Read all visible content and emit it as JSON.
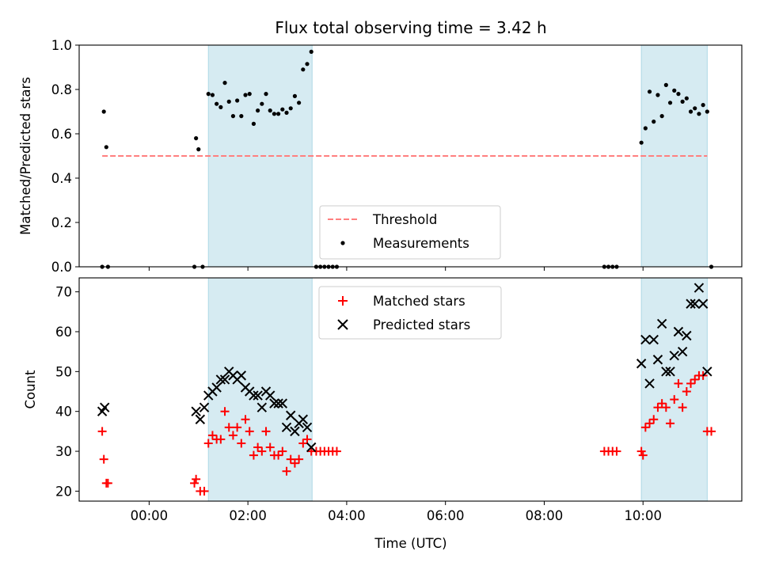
{
  "title": "Flux total observing time = 3.42 h",
  "colors": {
    "shade": "#add8e6",
    "threshold": "#ff7f7f",
    "measurements": "#000000",
    "matched": "#ff0000",
    "predicted": "#000000"
  },
  "shaded_intervals": [
    [
      "01:12",
      "03:18"
    ],
    [
      "09:58",
      "11:18"
    ]
  ],
  "xaxis": {
    "label": "Time (UTC)",
    "ticks": [
      "00:00",
      "02:00",
      "04:00",
      "06:00",
      "08:00",
      "10:00"
    ],
    "range": [
      "-01:25",
      "12:00"
    ]
  },
  "chart_data": [
    {
      "type": "scatter",
      "ylabel": "Matched/Predicted stars",
      "ylim": [
        0,
        1.0
      ],
      "yticks": [
        "0.0",
        "0.2",
        "0.4",
        "0.6",
        "0.8",
        "1.0"
      ],
      "legend": {
        "placement": "lower-center"
      },
      "threshold": {
        "name": "Threshold",
        "value": 0.5,
        "x_range": [
          "-00:57",
          "11:18"
        ]
      },
      "measurements": {
        "name": "Measurements",
        "points": [
          [
            "-00:57",
            0.0
          ],
          [
            "-00:55",
            0.7
          ],
          [
            "-00:52",
            0.54
          ],
          [
            "-00:50",
            0.0
          ],
          [
            "00:55",
            0.0
          ],
          [
            "00:57",
            0.58
          ],
          [
            "01:00",
            0.53
          ],
          [
            "01:05",
            0.0
          ],
          [
            "01:12",
            0.78
          ],
          [
            "01:17",
            0.775
          ],
          [
            "01:22",
            0.735
          ],
          [
            "01:27",
            0.72
          ],
          [
            "01:32",
            0.83
          ],
          [
            "01:37",
            0.745
          ],
          [
            "01:42",
            0.68
          ],
          [
            "01:47",
            0.75
          ],
          [
            "01:52",
            0.68
          ],
          [
            "01:57",
            0.775
          ],
          [
            "02:02",
            0.78
          ],
          [
            "02:07",
            0.645
          ],
          [
            "02:12",
            0.705
          ],
          [
            "02:17",
            0.735
          ],
          [
            "02:22",
            0.78
          ],
          [
            "02:27",
            0.705
          ],
          [
            "02:32",
            0.69
          ],
          [
            "02:37",
            0.69
          ],
          [
            "02:42",
            0.71
          ],
          [
            "02:47",
            0.695
          ],
          [
            "02:52",
            0.715
          ],
          [
            "02:57",
            0.77
          ],
          [
            "03:02",
            0.74
          ],
          [
            "03:07",
            0.89
          ],
          [
            "03:12",
            0.915
          ],
          [
            "03:17",
            0.97
          ],
          [
            "03:23",
            0.0
          ],
          [
            "03:28",
            0.0
          ],
          [
            "03:33",
            0.0
          ],
          [
            "03:38",
            0.0
          ],
          [
            "03:43",
            0.0
          ],
          [
            "03:48",
            0.0
          ],
          [
            "09:13",
            0.0
          ],
          [
            "09:18",
            0.0
          ],
          [
            "09:23",
            0.0
          ],
          [
            "09:28",
            0.0
          ],
          [
            "09:58",
            0.56
          ],
          [
            "10:03",
            0.625
          ],
          [
            "10:08",
            0.79
          ],
          [
            "10:13",
            0.655
          ],
          [
            "10:18",
            0.775
          ],
          [
            "10:23",
            0.68
          ],
          [
            "10:28",
            0.82
          ],
          [
            "10:33",
            0.74
          ],
          [
            "10:38",
            0.795
          ],
          [
            "10:43",
            0.78
          ],
          [
            "10:48",
            0.745
          ],
          [
            "10:53",
            0.76
          ],
          [
            "10:58",
            0.7
          ],
          [
            "11:03",
            0.715
          ],
          [
            "11:08",
            0.69
          ],
          [
            "11:13",
            0.73
          ],
          [
            "11:18",
            0.7
          ],
          [
            "11:23",
            0.0
          ]
        ]
      }
    },
    {
      "type": "scatter",
      "ylabel": "Count",
      "ylim": [
        17.5,
        73.5
      ],
      "yticks": [
        "20",
        "30",
        "40",
        "50",
        "60",
        "70"
      ],
      "legend": {
        "placement": "upper-center"
      },
      "series": [
        {
          "name": "Matched stars",
          "marker": "plus",
          "points": [
            [
              "-00:57",
              35
            ],
            [
              "-00:55",
              28
            ],
            [
              "-00:52",
              22
            ],
            [
              "-00:50",
              22
            ],
            [
              "00:55",
              22
            ],
            [
              "00:57",
              23
            ],
            [
              "01:02",
              20
            ],
            [
              "01:07",
              20
            ],
            [
              "01:12",
              32
            ],
            [
              "01:17",
              34
            ],
            [
              "01:22",
              33
            ],
            [
              "01:27",
              33
            ],
            [
              "01:32",
              40
            ],
            [
              "01:37",
              36
            ],
            [
              "01:42",
              34
            ],
            [
              "01:47",
              36
            ],
            [
              "01:52",
              32
            ],
            [
              "01:57",
              38
            ],
            [
              "02:02",
              35
            ],
            [
              "02:07",
              29
            ],
            [
              "02:12",
              31
            ],
            [
              "02:17",
              30
            ],
            [
              "02:22",
              35
            ],
            [
              "02:27",
              31
            ],
            [
              "02:32",
              29
            ],
            [
              "02:37",
              29
            ],
            [
              "02:42",
              30
            ],
            [
              "02:47",
              25
            ],
            [
              "02:52",
              28
            ],
            [
              "02:57",
              27
            ],
            [
              "03:02",
              28
            ],
            [
              "03:07",
              32
            ],
            [
              "03:12",
              33
            ],
            [
              "03:17",
              30
            ],
            [
              "03:23",
              30
            ],
            [
              "03:28",
              30
            ],
            [
              "03:33",
              30
            ],
            [
              "03:38",
              30
            ],
            [
              "03:43",
              30
            ],
            [
              "03:48",
              30
            ],
            [
              "09:13",
              30
            ],
            [
              "09:18",
              30
            ],
            [
              "09:23",
              30
            ],
            [
              "09:28",
              30
            ],
            [
              "09:58",
              30
            ],
            [
              "10:00",
              29
            ],
            [
              "10:03",
              36
            ],
            [
              "10:08",
              37
            ],
            [
              "10:13",
              38
            ],
            [
              "10:18",
              41
            ],
            [
              "10:23",
              42
            ],
            [
              "10:28",
              41
            ],
            [
              "10:33",
              37
            ],
            [
              "10:38",
              43
            ],
            [
              "10:43",
              47
            ],
            [
              "10:48",
              41
            ],
            [
              "10:53",
              45
            ],
            [
              "10:58",
              47
            ],
            [
              "11:03",
              48
            ],
            [
              "11:08",
              49
            ],
            [
              "11:13",
              49
            ],
            [
              "11:18",
              35
            ],
            [
              "11:23",
              35
            ]
          ]
        },
        {
          "name": "Predicted stars",
          "marker": "x",
          "points": [
            [
              "-00:57",
              40
            ],
            [
              "-00:54",
              41
            ],
            [
              "00:57",
              40
            ],
            [
              "01:02",
              38
            ],
            [
              "01:07",
              41
            ],
            [
              "01:12",
              44
            ],
            [
              "01:17",
              45
            ],
            [
              "01:22",
              46
            ],
            [
              "01:27",
              48
            ],
            [
              "01:32",
              48
            ],
            [
              "01:37",
              50
            ],
            [
              "01:42",
              49
            ],
            [
              "01:47",
              48
            ],
            [
              "01:52",
              49
            ],
            [
              "01:57",
              46
            ],
            [
              "02:02",
              45
            ],
            [
              "02:07",
              44
            ],
            [
              "02:12",
              44
            ],
            [
              "02:17",
              41
            ],
            [
              "02:22",
              45
            ],
            [
              "02:27",
              44
            ],
            [
              "02:32",
              42
            ],
            [
              "02:37",
              42
            ],
            [
              "02:42",
              42
            ],
            [
              "02:47",
              36
            ],
            [
              "02:52",
              39
            ],
            [
              "02:57",
              35
            ],
            [
              "03:02",
              37
            ],
            [
              "03:07",
              38
            ],
            [
              "03:12",
              36
            ],
            [
              "03:17",
              31
            ],
            [
              "09:58",
              52
            ],
            [
              "10:03",
              58
            ],
            [
              "10:08",
              47
            ],
            [
              "10:13",
              58
            ],
            [
              "10:18",
              53
            ],
            [
              "10:23",
              62
            ],
            [
              "10:28",
              50
            ],
            [
              "10:33",
              50
            ],
            [
              "10:38",
              54
            ],
            [
              "10:43",
              60
            ],
            [
              "10:48",
              55
            ],
            [
              "10:53",
              59
            ],
            [
              "10:58",
              67
            ],
            [
              "11:03",
              67
            ],
            [
              "11:08",
              71
            ],
            [
              "11:13",
              67
            ],
            [
              "11:18",
              50
            ]
          ]
        }
      ]
    }
  ]
}
